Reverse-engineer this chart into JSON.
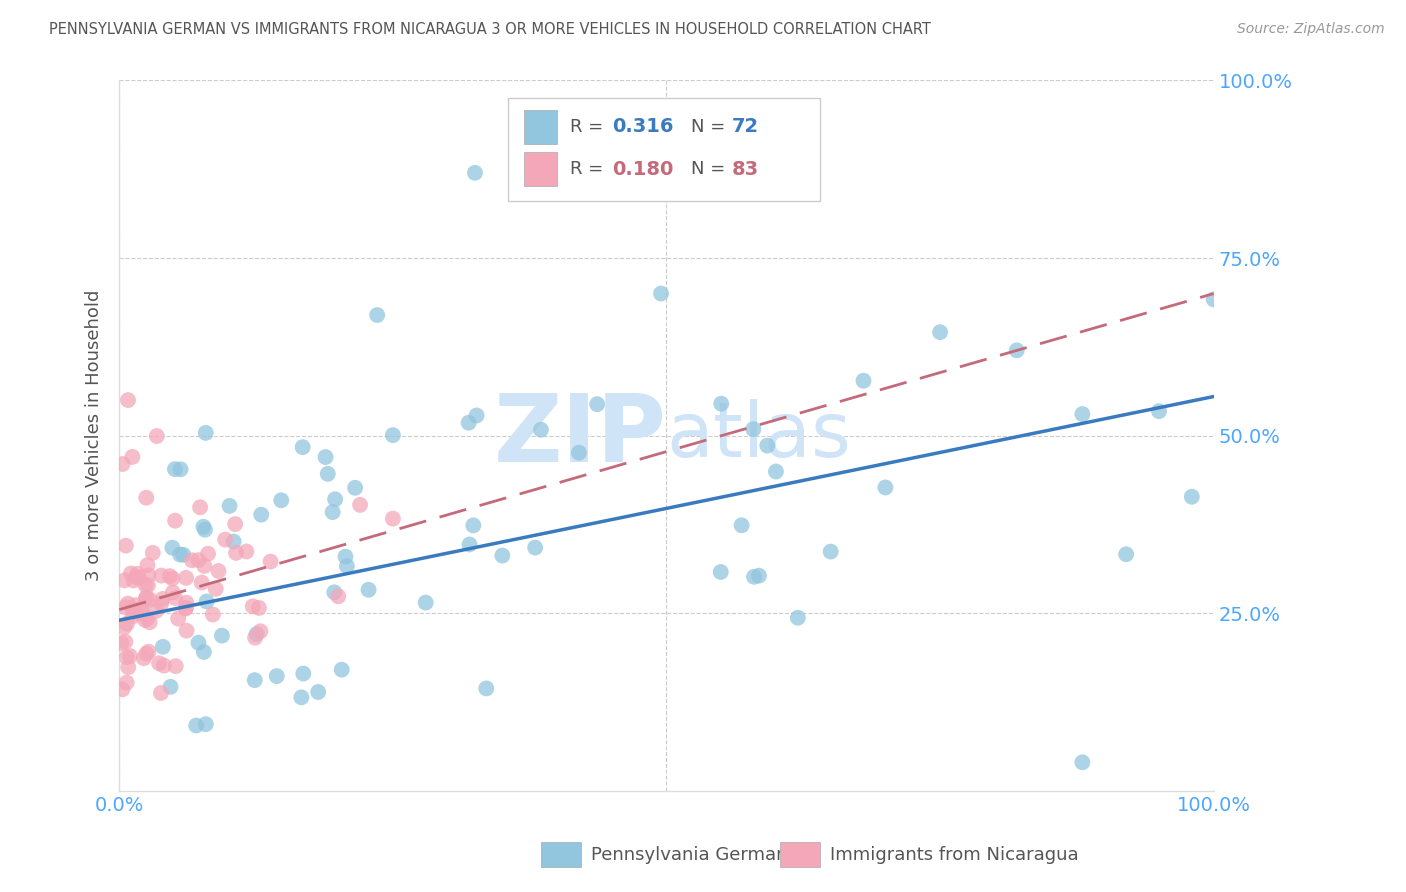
{
  "title": "PENNSYLVANIA GERMAN VS IMMIGRANTS FROM NICARAGUA 3 OR MORE VEHICLES IN HOUSEHOLD CORRELATION CHART",
  "source": "Source: ZipAtlas.com",
  "ylabel": "3 or more Vehicles in Household",
  "legend_r1": "0.316",
  "legend_n1": "72",
  "legend_r2": "0.180",
  "legend_n2": "83",
  "legend_label1": "Pennsylvania Germans",
  "legend_label2": "Immigrants from Nicaragua",
  "blue_color": "#92c5de",
  "pink_color": "#f4a7b9",
  "line_blue_color": "#3a7bbf",
  "line_pink_color": "#c46a7a",
  "title_color": "#555555",
  "axis_tick_color": "#4da6ff",
  "watermark_color": "#d0e4f7",
  "background_color": "#ffffff",
  "grid_color": "#cccccc",
  "yticks_right": [
    1.0,
    0.75,
    0.5,
    0.25
  ],
  "ytick_labels_right": [
    "100.0%",
    "75.0%",
    "50.0%",
    "25.0%"
  ],
  "xticks": [
    0.0,
    1.0
  ],
  "xtick_labels": [
    "0.0%",
    "100.0%"
  ],
  "xlim": [
    0.0,
    1.0
  ],
  "ylim": [
    0.0,
    1.0
  ],
  "blue_line_x0": 0.0,
  "blue_line_x1": 1.0,
  "blue_line_y0": 0.24,
  "blue_line_y1": 0.555,
  "pink_line_x0": 0.0,
  "pink_line_x1": 1.0,
  "pink_line_y0": 0.255,
  "pink_line_y1": 0.7
}
